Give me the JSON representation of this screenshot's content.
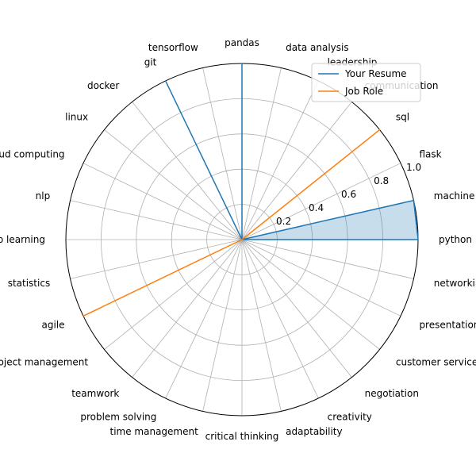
{
  "chart_data": {
    "type": "radar",
    "categories": [
      "python",
      "machine learning",
      "flask",
      "sql",
      "communication",
      "leadership",
      "data analysis",
      "pandas",
      "tensorflow",
      "git",
      "docker",
      "linux",
      "cloud computing",
      "nlp",
      "deep learning",
      "statistics",
      "agile",
      "project management",
      "teamwork",
      "problem solving",
      "time management",
      "critical thinking",
      "adaptability",
      "creativity",
      "negotiation",
      "customer service",
      "presentation skills",
      "networking"
    ],
    "series": [
      {
        "name": "Your Resume",
        "color": "#1f77b4",
        "fill": true,
        "values": [
          1,
          1,
          0,
          0,
          0,
          0,
          0,
          1,
          0,
          1,
          0,
          0,
          0,
          0,
          0,
          0,
          0,
          0,
          0,
          0,
          0,
          0,
          0,
          0,
          0,
          0,
          0,
          0
        ]
      },
      {
        "name": "Job Role",
        "color": "#ff7f0e",
        "fill": false,
        "values": [
          0,
          0,
          0,
          1,
          0,
          0,
          0,
          0,
          0,
          0,
          0,
          0,
          0,
          0,
          0,
          0,
          1,
          0,
          0,
          0,
          0,
          0,
          0,
          0,
          0,
          0,
          0,
          0
        ]
      }
    ],
    "rticks": [
      0.2,
      0.4,
      0.6,
      0.8,
      1.0
    ],
    "rtick_labels": [
      "0.2",
      "0.4",
      "0.6",
      "0.8",
      "1.0"
    ],
    "rlim": [
      0,
      1
    ],
    "grid": true,
    "legend": "upper-right"
  }
}
